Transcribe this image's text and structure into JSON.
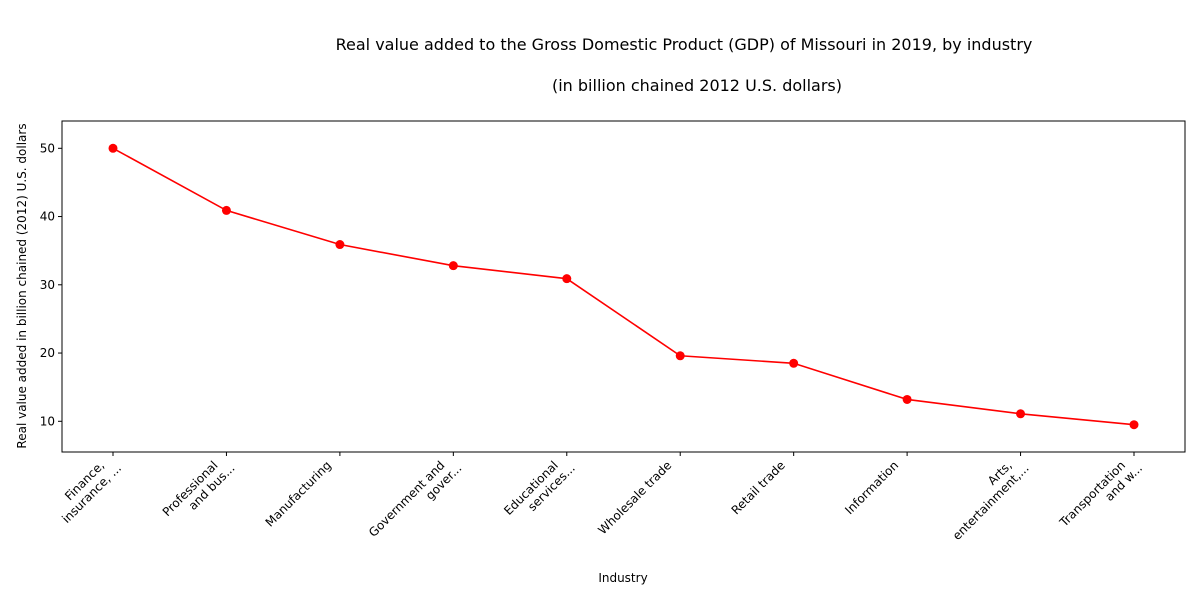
{
  "chart_data": {
    "type": "line",
    "title": "Real value added to the Gross Domestic Product (GDP) of Missouri in 2019, by industry",
    "subtitle": "(in billion chained 2012 U.S. dollars)",
    "xlabel": "Industry",
    "ylabel": "Real value added in billion chained (2012) U.S. dollars",
    "categories": [
      "Finance,\ninsurance, ...",
      "Professional\nand bus...",
      "Manufacturing",
      "Government and\ngover...",
      "Educational\nservices...",
      "Wholesale trade",
      "Retail trade",
      "Information",
      "Arts,\nentertainment,...",
      "Transportation\nand w..."
    ],
    "values": [
      50.0,
      40.9,
      35.9,
      32.8,
      30.9,
      19.6,
      18.5,
      13.2,
      11.1,
      9.5
    ],
    "ylim": [
      5.5,
      54.0
    ],
    "yticks": [
      10,
      20,
      30,
      40,
      50
    ],
    "grid": false,
    "color": "#ff0000"
  }
}
